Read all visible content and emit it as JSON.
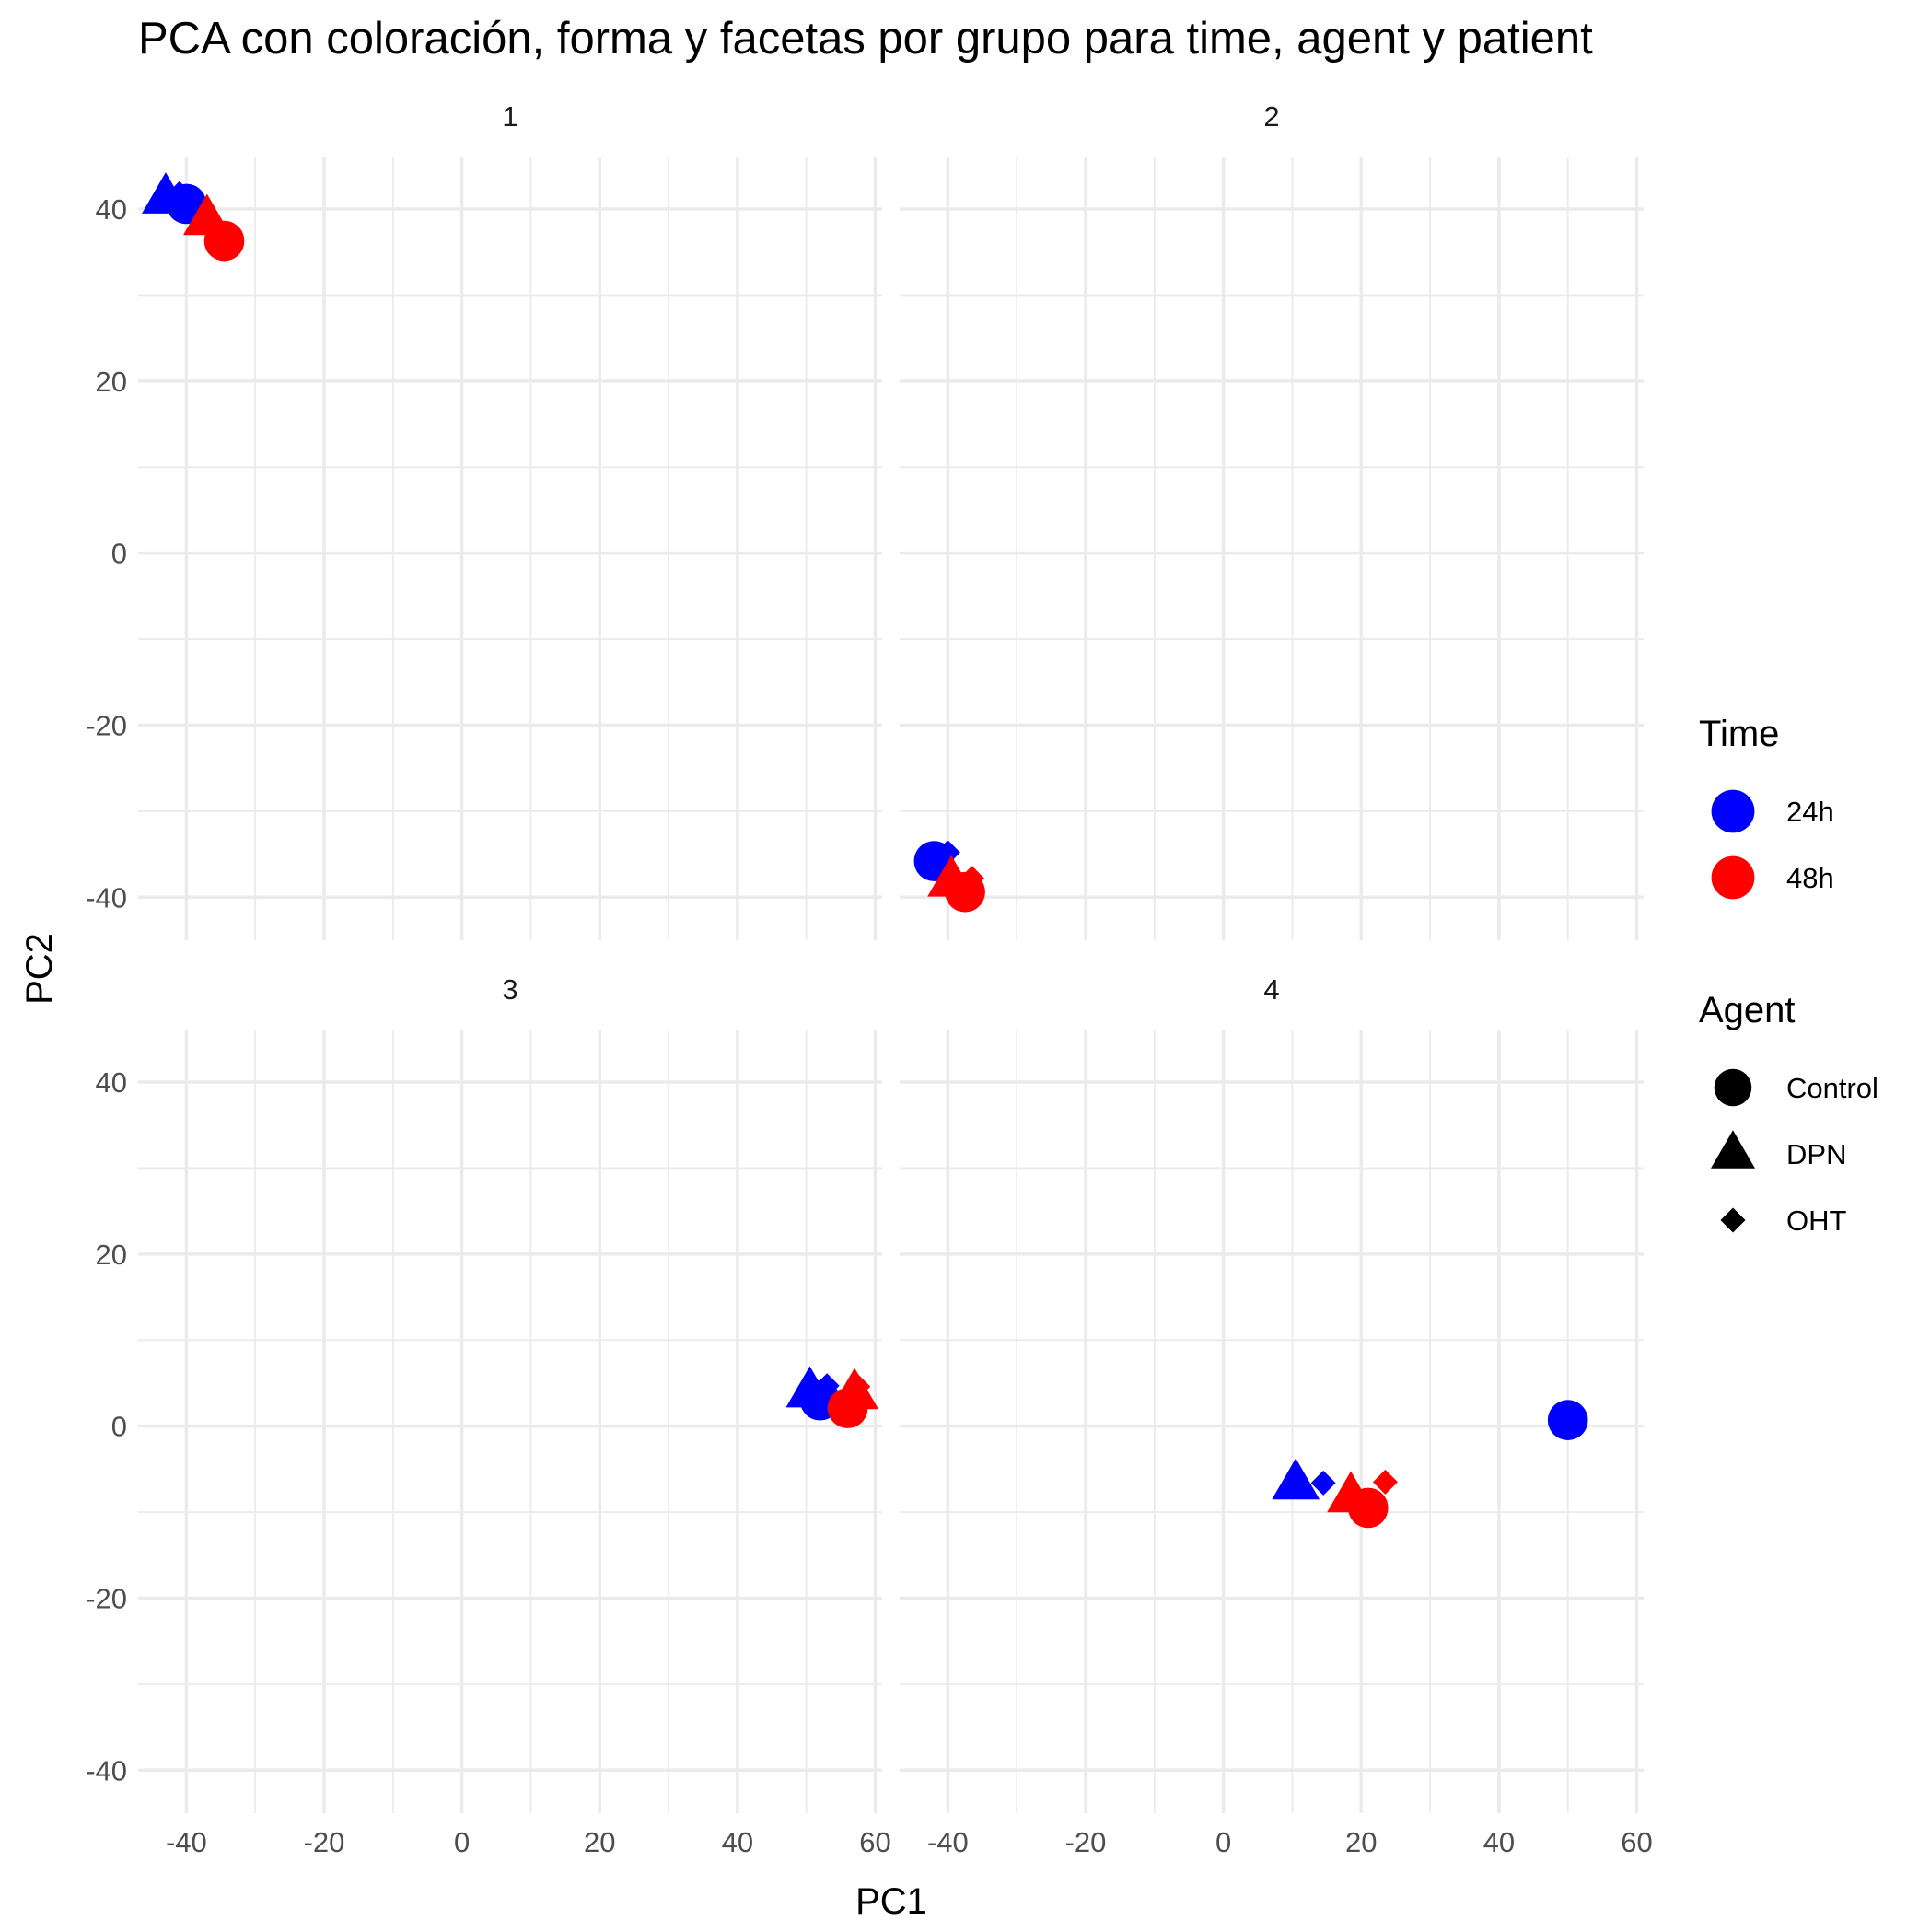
{
  "chart_data": {
    "type": "scatter",
    "title": "PCA con coloración, forma y facetas por grupo para time, agent y patient",
    "xlabel": "PC1",
    "ylabel": "PC2",
    "xlim": [
      -47,
      61
    ],
    "ylim": [
      -45,
      46
    ],
    "x_ticks": [
      -40,
      -20,
      0,
      20,
      40,
      60
    ],
    "y_ticks": [
      -40,
      -20,
      0,
      20,
      40
    ],
    "grid": true,
    "facet_by": "patient",
    "legend_placement": "right",
    "colors": {
      "24h": "#0000ff",
      "48h": "#ff0000"
    },
    "legends": [
      {
        "title": "Time",
        "kind": "color",
        "entries": [
          {
            "label": "24h",
            "key": "24h"
          },
          {
            "label": "48h",
            "key": "48h"
          }
        ]
      },
      {
        "title": "Agent",
        "kind": "shape",
        "entries": [
          {
            "label": "Control",
            "shape": "circle"
          },
          {
            "label": "DPN",
            "shape": "triangle"
          },
          {
            "label": "OHT",
            "shape": "diamond"
          }
        ]
      }
    ],
    "facets": [
      {
        "label": "1",
        "points": [
          {
            "time": "24h",
            "agent": "DPN",
            "x": -43,
            "y": 41.3
          },
          {
            "time": "24h",
            "agent": "OHT",
            "x": -41,
            "y": 41.8
          },
          {
            "time": "24h",
            "agent": "Control",
            "x": -40,
            "y": 40.6
          },
          {
            "time": "48h",
            "agent": "DPN",
            "x": -37,
            "y": 38.8
          },
          {
            "time": "48h",
            "agent": "Control",
            "x": -34.5,
            "y": 36.3
          }
        ]
      },
      {
        "label": "2",
        "points": [
          {
            "time": "24h",
            "agent": "OHT",
            "x": -40,
            "y": -34.8
          },
          {
            "time": "24h",
            "agent": "Control",
            "x": -42,
            "y": -35.8
          },
          {
            "time": "48h",
            "agent": "DPN",
            "x": -39.5,
            "y": -38.1
          },
          {
            "time": "48h",
            "agent": "OHT",
            "x": -36.5,
            "y": -37.8
          },
          {
            "time": "48h",
            "agent": "Control",
            "x": -37.5,
            "y": -39.4
          }
        ]
      },
      {
        "label": "3",
        "points": [
          {
            "time": "24h",
            "agent": "DPN",
            "x": 50.5,
            "y": 4.0
          },
          {
            "time": "24h",
            "agent": "OHT",
            "x": 53,
            "y": 4.7
          },
          {
            "time": "24h",
            "agent": "Control",
            "x": 52,
            "y": 3.0
          },
          {
            "time": "48h",
            "agent": "DPN",
            "x": 57,
            "y": 3.8
          },
          {
            "time": "48h",
            "agent": "OHT",
            "x": 57.5,
            "y": 4.6
          },
          {
            "time": "48h",
            "agent": "Control",
            "x": 56,
            "y": 2.1
          }
        ]
      },
      {
        "label": "4",
        "points": [
          {
            "time": "24h",
            "agent": "DPN",
            "x": 10.5,
            "y": -6.7
          },
          {
            "time": "24h",
            "agent": "OHT",
            "x": 14.5,
            "y": -6.6
          },
          {
            "time": "24h",
            "agent": "Control",
            "x": 50,
            "y": 0.7
          },
          {
            "time": "48h",
            "agent": "DPN",
            "x": 18.5,
            "y": -8.2
          },
          {
            "time": "48h",
            "agent": "OHT",
            "x": 23.5,
            "y": -6.5
          },
          {
            "time": "48h",
            "agent": "Control",
            "x": 21,
            "y": -9.5
          }
        ]
      }
    ]
  }
}
